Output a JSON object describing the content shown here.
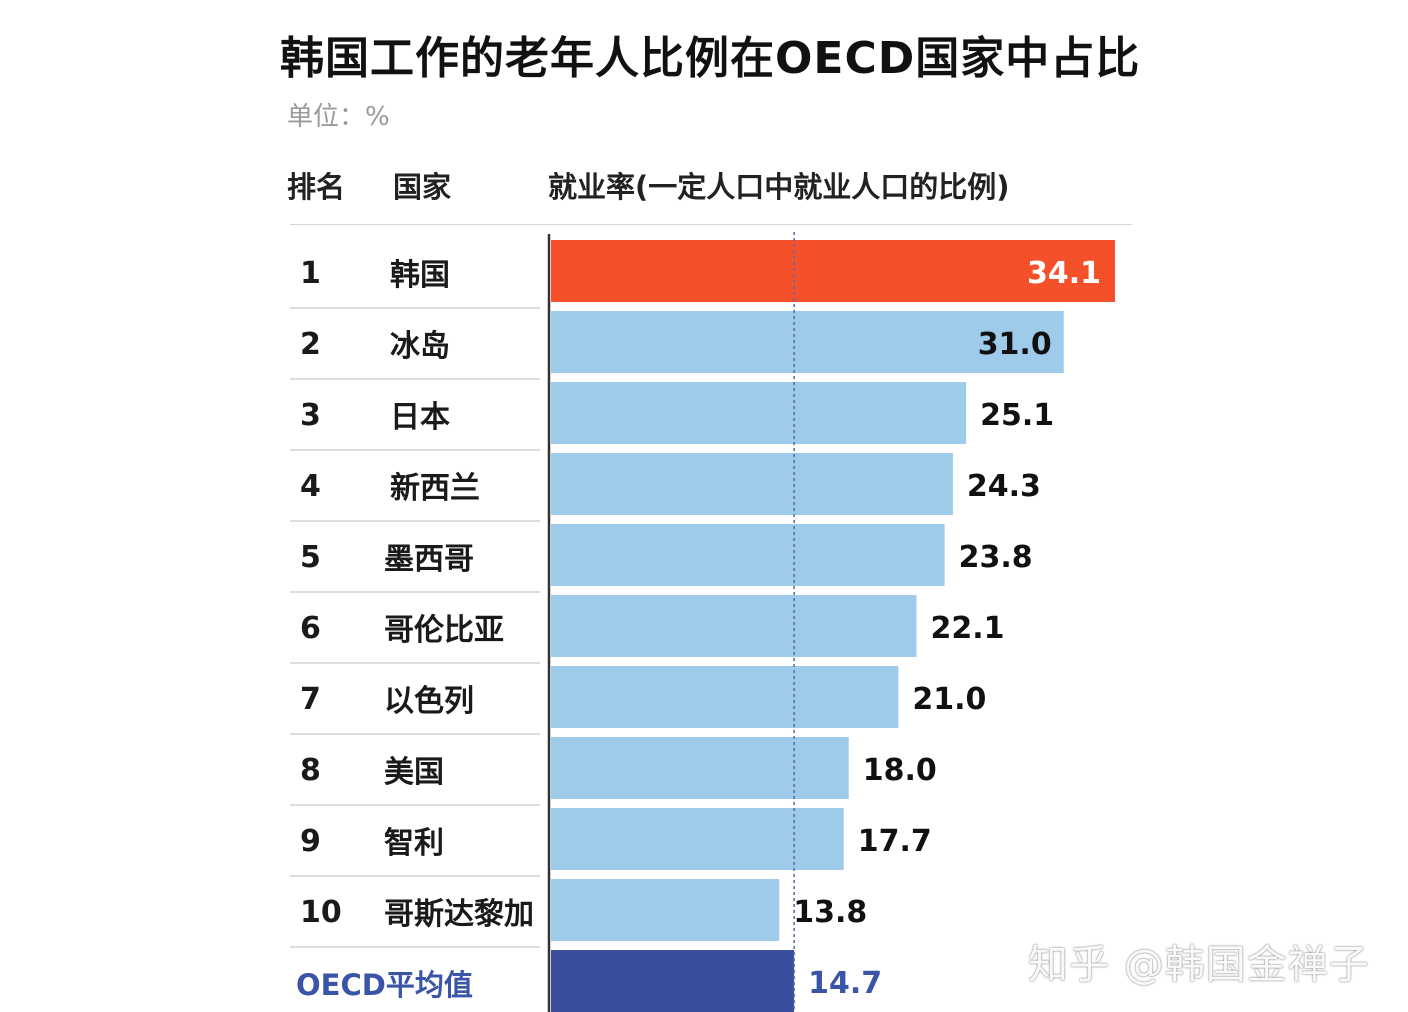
{
  "header": {
    "title": "韩国工作的老年人比例在OECD国家中占比",
    "unit": "单位：%",
    "col_rank": "排名",
    "col_country": "国家",
    "col_rate": "就业率(一定人口中就业人口的比例)"
  },
  "watermark": "知乎 @韩国金禅子",
  "colors": {
    "highlight": "#F4512A",
    "bar": "#9FCBEA",
    "average": "#3A4E9E",
    "average_text": "#3A55A8"
  },
  "chart_data": {
    "type": "bar",
    "orientation": "horizontal",
    "title": "韩国工作的老年人比例在OECD国家中占比",
    "unit": "%",
    "xlim": [
      0,
      34.1
    ],
    "reference_line": 14.7,
    "rows": [
      {
        "rank": "1",
        "country": "韩国",
        "value": 34.1,
        "label": "34.1",
        "style": "highlight"
      },
      {
        "rank": "2",
        "country": "冰岛",
        "value": 31.0,
        "label": "31.0",
        "style": "normal"
      },
      {
        "rank": "3",
        "country": "日本",
        "value": 25.1,
        "label": "25.1",
        "style": "normal"
      },
      {
        "rank": "4",
        "country": "新西兰",
        "value": 24.3,
        "label": "24.3",
        "style": "normal"
      },
      {
        "rank": "5",
        "country": "墨西哥",
        "value": 23.8,
        "label": "23.8",
        "style": "normal"
      },
      {
        "rank": "6",
        "country": "哥伦比亚",
        "value": 22.1,
        "label": "22.1",
        "style": "normal"
      },
      {
        "rank": "7",
        "country": "以色列",
        "value": 21.0,
        "label": "21.0",
        "style": "normal"
      },
      {
        "rank": "8",
        "country": "美国",
        "value": 18.0,
        "label": "18.0",
        "style": "normal"
      },
      {
        "rank": "9",
        "country": "智利",
        "value": 17.7,
        "label": "17.7",
        "style": "normal"
      },
      {
        "rank": "10",
        "country": "哥斯达黎加",
        "value": 13.8,
        "label": "13.8",
        "style": "normal"
      },
      {
        "rank": "",
        "country": "OECD平均值",
        "value": 14.7,
        "label": "14.7",
        "style": "average"
      }
    ]
  }
}
